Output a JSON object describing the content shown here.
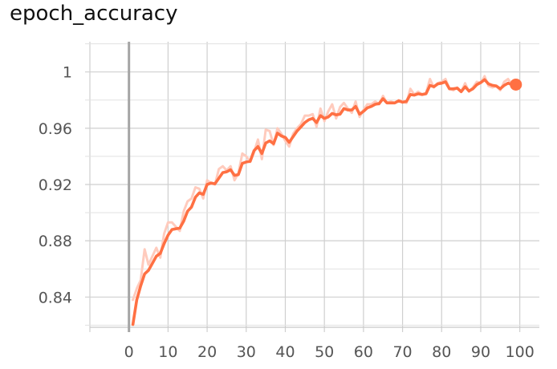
{
  "chart_data": {
    "type": "line",
    "title": "epoch_accuracy",
    "xlabel": "",
    "ylabel": "",
    "xlim": [
      -10,
      105
    ],
    "ylim": [
      0.8185,
      1.0215
    ],
    "xticks": [
      0,
      10,
      20,
      30,
      40,
      50,
      60,
      70,
      80,
      90,
      100
    ],
    "xtick_labels": [
      "0",
      "10",
      "20",
      "30",
      "40",
      "50",
      "60",
      "70",
      "80",
      "90",
      "100"
    ],
    "yticks": [
      0.84,
      0.88,
      0.92,
      0.96,
      1.0
    ],
    "ytick_labels": [
      "0.84",
      "0.88",
      "0.92",
      "0.96",
      "1"
    ],
    "grid": true,
    "colors": {
      "smoothed": "#ff7043",
      "raw": "#ffcbbd",
      "axis": "#a5a5a5"
    },
    "series": [
      {
        "name": "smoothed",
        "x": [
          1,
          2,
          3,
          4,
          5,
          6,
          7,
          8,
          9,
          10,
          11,
          12,
          13,
          14,
          15,
          16,
          17,
          18,
          19,
          20,
          21,
          22,
          23,
          24,
          25,
          26,
          27,
          28,
          29,
          30,
          31,
          32,
          33,
          34,
          35,
          36,
          37,
          38,
          39,
          40,
          41,
          42,
          43,
          44,
          45,
          46,
          47,
          48,
          49,
          50,
          51,
          52,
          53,
          54,
          55,
          56,
          57,
          58,
          59,
          60,
          61,
          62,
          63,
          64,
          65,
          66,
          67,
          68,
          69,
          70,
          71,
          72,
          73,
          74,
          75,
          76,
          77,
          78,
          79,
          80,
          81,
          82,
          83,
          84,
          85,
          86,
          87,
          88,
          89,
          90,
          91,
          92,
          93,
          94,
          95,
          96,
          97,
          98,
          99
        ],
        "values": [
          0.8205,
          0.838,
          0.848,
          0.8565,
          0.859,
          0.864,
          0.869,
          0.871,
          0.878,
          0.884,
          0.888,
          0.8885,
          0.889,
          0.894,
          0.901,
          0.904,
          0.911,
          0.914,
          0.913,
          0.92,
          0.921,
          0.9205,
          0.9245,
          0.9285,
          0.929,
          0.9305,
          0.9265,
          0.927,
          0.935,
          0.936,
          0.9365,
          0.944,
          0.947,
          0.942,
          0.9495,
          0.951,
          0.949,
          0.9565,
          0.9545,
          0.9535,
          0.95,
          0.954,
          0.958,
          0.961,
          0.964,
          0.966,
          0.967,
          0.964,
          0.969,
          0.967,
          0.968,
          0.9705,
          0.9695,
          0.97,
          0.974,
          0.973,
          0.973,
          0.9755,
          0.97,
          0.972,
          0.9745,
          0.9755,
          0.977,
          0.9775,
          0.981,
          0.978,
          0.978,
          0.978,
          0.9795,
          0.9785,
          0.979,
          0.984,
          0.9835,
          0.9845,
          0.984,
          0.9845,
          0.9905,
          0.9895,
          0.9915,
          0.992,
          0.993,
          0.988,
          0.988,
          0.9885,
          0.986,
          0.9895,
          0.9865,
          0.988,
          0.991,
          0.9925,
          0.9945,
          0.9915,
          0.9905,
          0.99,
          0.988,
          0.9905,
          0.992,
          0.991,
          0.991
        ]
      },
      {
        "name": "raw",
        "x": [
          1,
          2,
          3,
          4,
          5,
          6,
          7,
          8,
          9,
          10,
          11,
          12,
          13,
          14,
          15,
          16,
          17,
          18,
          19,
          20,
          21,
          22,
          23,
          24,
          25,
          26,
          27,
          28,
          29,
          30,
          31,
          32,
          33,
          34,
          35,
          36,
          37,
          38,
          39,
          40,
          41,
          42,
          43,
          44,
          45,
          46,
          47,
          48,
          49,
          50,
          51,
          52,
          53,
          54,
          55,
          56,
          57,
          58,
          59,
          60,
          61,
          62,
          63,
          64,
          65,
          66,
          67,
          68,
          69,
          70,
          71,
          72,
          73,
          74,
          75,
          76,
          77,
          78,
          79,
          80,
          81,
          82,
          83,
          84,
          85,
          86,
          87,
          88,
          89,
          90,
          91,
          92,
          93,
          94,
          95,
          96,
          97,
          98,
          99
        ],
        "values": [
          0.838,
          0.846,
          0.852,
          0.874,
          0.863,
          0.869,
          0.875,
          0.868,
          0.885,
          0.893,
          0.893,
          0.89,
          0.887,
          0.901,
          0.908,
          0.91,
          0.918,
          0.917,
          0.91,
          0.923,
          0.921,
          0.92,
          0.931,
          0.933,
          0.93,
          0.933,
          0.923,
          0.928,
          0.942,
          0.94,
          0.936,
          0.943,
          0.952,
          0.938,
          0.959,
          0.958,
          0.948,
          0.96,
          0.956,
          0.951,
          0.947,
          0.956,
          0.96,
          0.963,
          0.969,
          0.969,
          0.97,
          0.961,
          0.974,
          0.965,
          0.972,
          0.977,
          0.967,
          0.975,
          0.978,
          0.974,
          0.971,
          0.979,
          0.968,
          0.973,
          0.977,
          0.977,
          0.979,
          0.977,
          0.983,
          0.978,
          0.979,
          0.978,
          0.98,
          0.979,
          0.978,
          0.988,
          0.984,
          0.986,
          0.984,
          0.985,
          0.995,
          0.989,
          0.992,
          0.993,
          0.995,
          0.988,
          0.987,
          0.989,
          0.986,
          0.992,
          0.986,
          0.989,
          0.993,
          0.992,
          0.997,
          0.99,
          0.989,
          0.99,
          0.987,
          0.993,
          0.995,
          0.991,
          0.991
        ]
      }
    ],
    "last_point": {
      "x": 99,
      "y": 0.991
    }
  }
}
